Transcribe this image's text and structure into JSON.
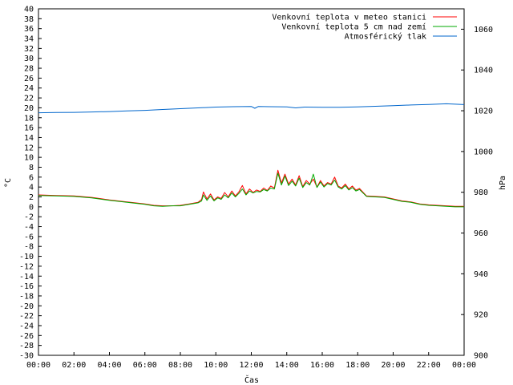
{
  "chart_data": {
    "type": "line",
    "title": "",
    "xlabel": "Čas",
    "ylabel": "°C",
    "y2label": "hPa",
    "x_ticks": [
      "00:00",
      "02:00",
      "04:00",
      "06:00",
      "08:00",
      "10:00",
      "12:00",
      "14:00",
      "16:00",
      "18:00",
      "20:00",
      "22:00",
      "00:00"
    ],
    "x_range_hours": [
      0,
      24
    ],
    "ylim": [
      -30,
      40
    ],
    "y_step": 2,
    "y2lim": [
      900,
      1070
    ],
    "y2_ticks": [
      900,
      920,
      940,
      960,
      980,
      1000,
      1020,
      1040,
      1060
    ],
    "grid": false,
    "legend_position": "top-right",
    "series": [
      {
        "name": "Venkovní teplota v meteo stanici",
        "axis": "left",
        "color": "#ff0000",
        "x": [
          0,
          1,
          2,
          3,
          4,
          5,
          6,
          6.5,
          7,
          7.5,
          8,
          8.5,
          9,
          9.2,
          9.3,
          9.5,
          9.7,
          9.9,
          10.1,
          10.3,
          10.5,
          10.7,
          10.9,
          11.1,
          11.3,
          11.5,
          11.7,
          11.9,
          12.1,
          12.3,
          12.5,
          12.7,
          12.9,
          13.1,
          13.3,
          13.5,
          13.7,
          13.9,
          14.1,
          14.3,
          14.5,
          14.7,
          14.9,
          15.1,
          15.3,
          15.5,
          15.7,
          15.9,
          16.1,
          16.3,
          16.5,
          16.7,
          16.9,
          17.1,
          17.3,
          17.5,
          17.7,
          17.9,
          18.1,
          18.5,
          19,
          19.5,
          20,
          20.5,
          21,
          21.5,
          22,
          22.5,
          23,
          23.5,
          24
        ],
        "values": [
          2.4,
          2.3,
          2.2,
          1.9,
          1.4,
          1.0,
          0.6,
          0.3,
          0.2,
          0.2,
          0.3,
          0.6,
          0.9,
          1.5,
          3.0,
          1.6,
          2.6,
          1.4,
          2.0,
          1.7,
          2.9,
          2.0,
          3.2,
          2.2,
          3.0,
          4.3,
          2.6,
          3.6,
          2.9,
          3.4,
          3.1,
          3.8,
          3.3,
          4.2,
          3.8,
          7.4,
          4.8,
          6.6,
          4.6,
          5.6,
          4.4,
          6.3,
          4.1,
          5.3,
          4.6,
          5.6,
          4.0,
          5.3,
          4.2,
          4.9,
          4.6,
          6.0,
          4.2,
          3.8,
          4.6,
          3.6,
          4.2,
          3.4,
          3.7,
          2.2,
          2.1,
          2.0,
          1.6,
          1.2,
          1.0,
          0.6,
          0.4,
          0.3,
          0.2,
          0.1,
          0.1
        ]
      },
      {
        "name": "Venkovní teplota 5 cm nad zemí",
        "axis": "left",
        "color": "#00aa00",
        "x": [
          0,
          1,
          2,
          3,
          4,
          5,
          6,
          6.5,
          7,
          7.5,
          8,
          8.5,
          9,
          9.2,
          9.3,
          9.5,
          9.7,
          9.9,
          10.1,
          10.3,
          10.5,
          10.7,
          10.9,
          11.1,
          11.3,
          11.5,
          11.7,
          11.9,
          12.1,
          12.3,
          12.5,
          12.7,
          12.9,
          13.1,
          13.3,
          13.5,
          13.7,
          13.9,
          14.1,
          14.3,
          14.5,
          14.7,
          14.9,
          15.1,
          15.3,
          15.5,
          15.7,
          15.9,
          16.1,
          16.3,
          16.5,
          16.7,
          16.9,
          17.1,
          17.3,
          17.5,
          17.7,
          17.9,
          18.1,
          18.5,
          19,
          19.5,
          20,
          20.5,
          21,
          21.5,
          22,
          22.5,
          23,
          23.5,
          24
        ],
        "values": [
          2.3,
          2.2,
          2.1,
          1.8,
          1.3,
          0.9,
          0.5,
          0.2,
          0.1,
          0.2,
          0.2,
          0.5,
          0.8,
          1.2,
          2.4,
          1.3,
          2.2,
          1.2,
          1.8,
          1.5,
          2.4,
          1.8,
          2.8,
          2.0,
          2.7,
          3.6,
          2.4,
          3.2,
          2.8,
          3.1,
          3.0,
          3.5,
          3.2,
          3.8,
          3.6,
          6.8,
          4.4,
          6.2,
          4.3,
          5.2,
          4.2,
          5.8,
          3.9,
          4.9,
          4.4,
          6.6,
          3.9,
          5.0,
          4.0,
          4.7,
          4.4,
          5.4,
          4.0,
          3.6,
          4.3,
          3.4,
          3.9,
          3.2,
          3.5,
          2.1,
          2.0,
          1.9,
          1.5,
          1.1,
          0.9,
          0.5,
          0.3,
          0.2,
          0.1,
          0.0,
          0.0
        ]
      },
      {
        "name": "Atmosférický tlak",
        "axis": "right",
        "color": "#0066cc",
        "x": [
          0,
          1,
          2,
          3,
          4,
          5,
          6,
          7,
          8,
          9,
          10,
          11,
          12,
          12.2,
          12.4,
          13,
          14,
          14.5,
          15,
          16,
          17,
          18,
          19,
          20,
          21,
          22,
          23,
          24
        ],
        "values": [
          1019.0,
          1019.1,
          1019.2,
          1019.4,
          1019.6,
          1019.9,
          1020.2,
          1020.6,
          1021.0,
          1021.4,
          1021.8,
          1022.0,
          1022.1,
          1021.2,
          1022.1,
          1022.0,
          1021.9,
          1021.4,
          1021.8,
          1021.7,
          1021.7,
          1021.9,
          1022.2,
          1022.5,
          1022.8,
          1023.1,
          1023.4,
          1023.0
        ]
      }
    ]
  }
}
